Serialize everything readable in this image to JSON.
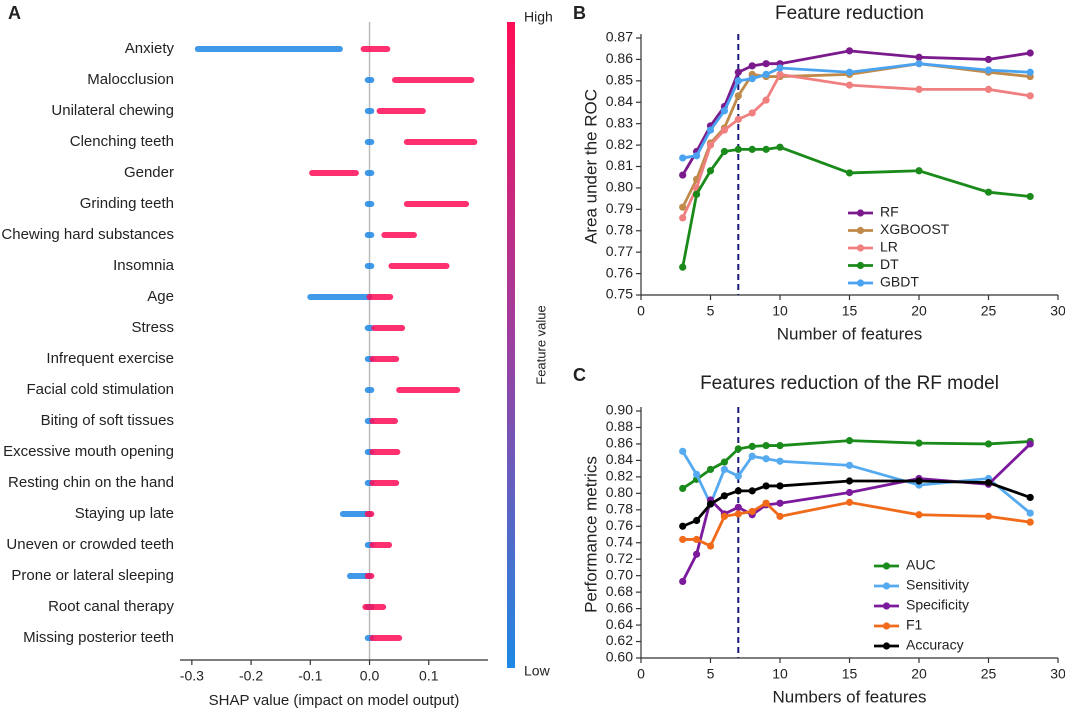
{
  "chart_data": [
    {
      "type": "beeswarm",
      "panel_label": "A",
      "categories": [
        "Anxiety",
        "Malocclusion",
        "Unilateral chewing",
        "Clenching teeth",
        "Gender",
        "Grinding teeth",
        "Chewing hard substances",
        "Insomnia",
        "Age",
        "Stress",
        "Infrequent exercise",
        "Facial cold stimulation",
        "Biting of soft tissues",
        "Excessive mouth opening",
        "Resting chin on the hand",
        "Staying up late",
        "Uneven or crowded teeth",
        "Prone or lateral sleeping",
        "Root canal therapy",
        "Missing posterior teeth"
      ],
      "series": [
        {
          "name": "Low",
          "color": "#1e88e5",
          "values": [
            [
              -0.29,
              -0.05
            ],
            [
              -0.003,
              0.003
            ],
            [
              -0.003,
              0.003
            ],
            [
              -0.003,
              0.003
            ],
            [
              -0.003,
              0.003
            ],
            [
              -0.003,
              0.003
            ],
            [
              -0.003,
              0.003
            ],
            [
              -0.003,
              0.003
            ],
            [
              -0.1,
              0.0
            ],
            [
              -0.003,
              0.003
            ],
            [
              -0.003,
              0.003
            ],
            [
              -0.003,
              0.003
            ],
            [
              -0.003,
              0.003
            ],
            [
              -0.003,
              0.003
            ],
            [
              -0.003,
              0.003
            ],
            [
              -0.045,
              0.0
            ],
            [
              -0.003,
              0.003
            ],
            [
              -0.033,
              0.0
            ],
            [
              -0.003,
              0.003
            ],
            [
              -0.003,
              0.003
            ]
          ]
        },
        {
          "name": "High",
          "color": "#ff0d57",
          "values": [
            [
              -0.01,
              0.03
            ],
            [
              0.043,
              0.172
            ],
            [
              0.017,
              0.09
            ],
            [
              0.063,
              0.177
            ],
            [
              -0.097,
              -0.023
            ],
            [
              0.063,
              0.163
            ],
            [
              0.025,
              0.075
            ],
            [
              0.037,
              0.13
            ],
            [
              0.0,
              0.035
            ],
            [
              0.008,
              0.055
            ],
            [
              0.005,
              0.045
            ],
            [
              0.05,
              0.148
            ],
            [
              0.005,
              0.043
            ],
            [
              0.005,
              0.047
            ],
            [
              0.005,
              0.045
            ],
            [
              -0.003,
              0.003
            ],
            [
              0.005,
              0.033
            ],
            [
              -0.003,
              0.003
            ],
            [
              -0.007,
              0.023
            ],
            [
              0.005,
              0.05
            ]
          ]
        }
      ],
      "xlim": [
        -0.32,
        0.2
      ],
      "xticks": [
        -0.3,
        -0.2,
        -0.1,
        {
          "value": 0,
          "label": "0.0"
        },
        0.1
      ],
      "xlabel": "SHAP value (impact on model output)",
      "colorbar_label": "Feature value"
    },
    {
      "type": "line",
      "panel_label": "B",
      "title": "Feature reduction",
      "xlabel": "Number of features",
      "ylabel": "Area under the ROC",
      "x": [
        3,
        4,
        5,
        6,
        7,
        8,
        9,
        10,
        15,
        20,
        25,
        28
      ],
      "series": [
        {
          "name": "RF",
          "color": "#7b1a8c",
          "values": [
            0.806,
            0.817,
            0.829,
            0.838,
            0.854,
            0.857,
            0.858,
            0.858,
            0.864,
            0.861,
            0.86,
            0.863
          ]
        },
        {
          "name": "XGBOOST",
          "color": "#c08a4a",
          "values": [
            0.791,
            0.804,
            0.821,
            0.828,
            0.843,
            0.853,
            0.852,
            0.852,
            0.853,
            0.858,
            0.854,
            0.852
          ]
        },
        {
          "name": "LR",
          "color": "#f08080",
          "values": [
            0.786,
            0.8,
            0.82,
            0.827,
            0.832,
            0.835,
            0.841,
            0.853,
            0.848,
            0.846,
            0.846,
            0.843
          ]
        },
        {
          "name": "DT",
          "color": "#1a8a1a",
          "values": [
            0.763,
            0.797,
            0.808,
            0.817,
            0.818,
            0.818,
            0.818,
            0.819,
            0.807,
            0.808,
            0.798,
            0.796
          ]
        },
        {
          "name": "GBDT",
          "color": "#4aa3f0",
          "values": [
            0.814,
            0.815,
            0.827,
            0.836,
            0.85,
            0.851,
            0.853,
            0.856,
            0.854,
            0.858,
            0.855,
            0.854
          ]
        }
      ],
      "xlim": [
        0,
        30
      ],
      "xticks": [
        0,
        5,
        10,
        15,
        20,
        25,
        30
      ],
      "ylim": [
        0.75,
        0.87
      ],
      "yticks": [
        0.75,
        0.76,
        0.77,
        0.78,
        0.79,
        {
          "value": 0.8,
          "label": "0.80"
        },
        0.81,
        0.82,
        0.83,
        0.84,
        0.85,
        0.86,
        0.87
      ],
      "vline": 7,
      "legend": "lower right"
    },
    {
      "type": "line",
      "panel_label": "C",
      "title": "Features reduction of the RF model",
      "xlabel": "Numbers of features",
      "ylabel": "Performance metrics",
      "x": [
        3,
        4,
        5,
        6,
        7,
        8,
        9,
        10,
        15,
        20,
        25,
        28
      ],
      "series": [
        {
          "name": "AUC",
          "color": "#1a8a1a",
          "values": [
            0.806,
            0.817,
            0.829,
            0.838,
            0.854,
            0.857,
            0.858,
            0.858,
            0.864,
            0.861,
            0.86,
            0.863
          ]
        },
        {
          "name": "Sensitivity",
          "color": "#55aaf0",
          "values": [
            0.851,
            0.823,
            0.787,
            0.829,
            0.821,
            0.845,
            0.842,
            0.839,
            0.834,
            0.81,
            0.818,
            0.776
          ]
        },
        {
          "name": "Specificity",
          "color": "#7b1a9c",
          "values": [
            0.693,
            0.726,
            0.792,
            0.775,
            0.783,
            0.774,
            0.786,
            0.788,
            0.801,
            0.818,
            0.811,
            0.86
          ]
        },
        {
          "name": "F1",
          "color": "#f06a1a",
          "values": [
            0.744,
            0.744,
            0.736,
            0.772,
            0.775,
            0.778,
            0.788,
            0.772,
            0.789,
            0.774,
            0.772,
            0.765
          ]
        },
        {
          "name": "Accuracy",
          "color": "#000000",
          "values": [
            0.76,
            0.767,
            0.787,
            0.797,
            0.803,
            0.803,
            0.809,
            0.809,
            0.815,
            0.815,
            0.813,
            0.795
          ]
        }
      ],
      "xlim": [
        0,
        30
      ],
      "xticks": [
        0,
        5,
        10,
        15,
        20,
        25,
        30
      ],
      "ylim": [
        0.6,
        0.9
      ],
      "yticks": [
        {
          "value": 0.6,
          "label": "0.60"
        },
        0.62,
        0.64,
        0.66,
        0.68,
        {
          "value": 0.7,
          "label": "0.70"
        },
        0.72,
        0.74,
        0.76,
        0.78,
        {
          "value": 0.8,
          "label": "0.80"
        },
        0.82,
        0.84,
        0.86,
        0.88,
        {
          "value": 0.9,
          "label": "0.90"
        }
      ],
      "vline": 7,
      "legend": "lower right"
    }
  ]
}
